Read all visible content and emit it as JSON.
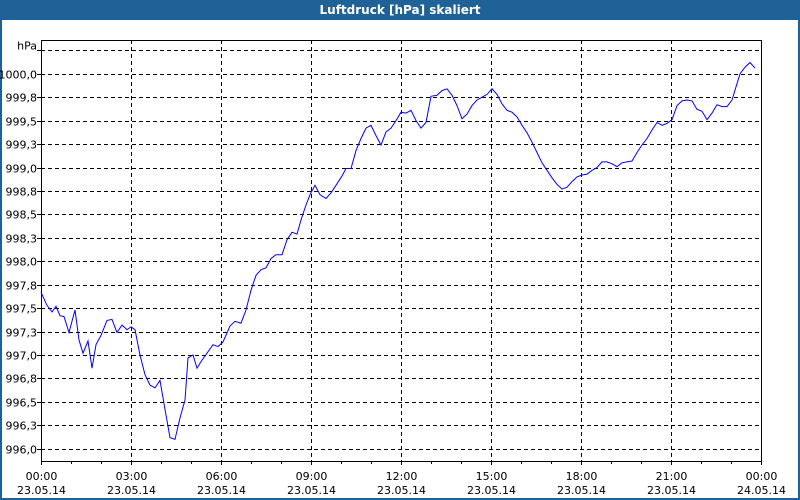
{
  "window": {
    "title": "Luftdruck [hPa] skaliert",
    "title_bar_color": "#1f6297"
  },
  "chart_data": {
    "type": "line",
    "title": "Luftdruck [hPa] skaliert",
    "ylabel": "hPa",
    "xlabel": "",
    "line_color": "#0000ff",
    "grid": true,
    "grid_style": "dashed",
    "ylim": [
      995.87,
      1000.36
    ],
    "xlim": [
      "23.05.14 00:00",
      "24.05.14 00:00"
    ],
    "y_ticks": [
      {
        "value": 996.0,
        "label": "996,0"
      },
      {
        "value": 996.25,
        "label": "996,3"
      },
      {
        "value": 996.5,
        "label": "996,5"
      },
      {
        "value": 996.75,
        "label": "996,8"
      },
      {
        "value": 997.0,
        "label": "997,0"
      },
      {
        "value": 997.25,
        "label": "997,3"
      },
      {
        "value": 997.5,
        "label": "997,5"
      },
      {
        "value": 997.75,
        "label": "997,8"
      },
      {
        "value": 998.0,
        "label": "998,0"
      },
      {
        "value": 998.25,
        "label": "998,3"
      },
      {
        "value": 998.5,
        "label": "998,5"
      },
      {
        "value": 998.75,
        "label": "998,8"
      },
      {
        "value": 999.0,
        "label": "999,0"
      },
      {
        "value": 999.25,
        "label": "999,3"
      },
      {
        "value": 999.5,
        "label": "999,5"
      },
      {
        "value": 999.75,
        "label": "999,8"
      },
      {
        "value": 1000.0,
        "label": "1000,0"
      },
      {
        "value": 1000.25,
        "label": ""
      }
    ],
    "x_ticks": [
      {
        "time": "00:00",
        "date": "23.05.14"
      },
      {
        "time": "03:00",
        "date": "23.05.14"
      },
      {
        "time": "06:00",
        "date": "23.05.14"
      },
      {
        "time": "09:00",
        "date": "23.05.14"
      },
      {
        "time": "12:00",
        "date": "23.05.14"
      },
      {
        "time": "15:00",
        "date": "23.05.14"
      },
      {
        "time": "18:00",
        "date": "23.05.14"
      },
      {
        "time": "21:00",
        "date": "23.05.14"
      },
      {
        "time": "00:00",
        "date": "24.05.14"
      }
    ],
    "series": [
      {
        "x": [
          "00:00",
          "00:12",
          "00:22",
          "00:30",
          "00:38",
          "00:46",
          "00:56",
          "01:08",
          "01:16",
          "01:24",
          "01:34",
          "01:42",
          "01:50",
          "02:00",
          "02:12",
          "02:22",
          "02:32",
          "02:42",
          "02:52",
          "03:00",
          "03:08",
          "03:18",
          "03:28",
          "03:38",
          "03:48",
          "03:58",
          "04:08",
          "04:18",
          "04:28",
          "04:38",
          "04:48",
          "04:54",
          "05:04",
          "05:12",
          "05:20",
          "05:32",
          "05:44",
          "05:54",
          "06:04",
          "06:18",
          "06:28",
          "06:40",
          "06:50",
          "07:00",
          "07:10",
          "07:20",
          "07:30",
          "07:40",
          "07:50",
          "08:02",
          "08:12",
          "08:22",
          "08:32",
          "08:40",
          "08:50",
          "08:58",
          "09:08",
          "09:18",
          "09:30",
          "09:40",
          "09:50",
          "10:02",
          "10:10",
          "10:20",
          "10:30",
          "10:40",
          "10:50",
          "11:00",
          "11:10",
          "11:20",
          "11:30",
          "11:40",
          "11:50",
          "12:00",
          "12:10",
          "12:20",
          "12:30",
          "12:40",
          "12:50",
          "13:00",
          "13:12",
          "13:22",
          "13:32",
          "13:42",
          "13:52",
          "14:02",
          "14:12",
          "14:22",
          "14:32",
          "14:42",
          "14:52",
          "15:02",
          "15:12",
          "15:22",
          "15:32",
          "15:42",
          "15:52",
          "16:02",
          "16:12",
          "16:22",
          "16:32",
          "16:42",
          "16:52",
          "17:02",
          "17:12",
          "17:22",
          "17:32",
          "17:42",
          "17:52",
          "18:02",
          "18:12",
          "18:22",
          "18:32",
          "18:42",
          "18:52",
          "19:02",
          "19:12",
          "19:22",
          "19:32",
          "19:42",
          "19:52",
          "20:02",
          "20:12",
          "20:22",
          "20:32",
          "20:42",
          "20:52",
          "21:02",
          "21:12",
          "21:22",
          "21:32",
          "21:42",
          "21:52",
          "22:02",
          "22:12",
          "22:22",
          "22:32",
          "22:42",
          "22:52",
          "23:02",
          "23:10",
          "23:18",
          "23:28",
          "23:38",
          "23:48"
        ],
        "values": [
          997.67,
          997.53,
          997.46,
          997.52,
          997.42,
          997.41,
          997.24,
          997.48,
          997.16,
          997.02,
          997.15,
          996.86,
          997.11,
          997.21,
          997.37,
          997.38,
          997.24,
          997.32,
          997.27,
          997.3,
          997.27,
          997.0,
          996.79,
          996.68,
          996.65,
          996.73,
          996.42,
          996.12,
          996.1,
          996.33,
          996.52,
          996.97,
          997.0,
          996.86,
          996.93,
          997.02,
          997.11,
          997.09,
          997.14,
          997.31,
          997.36,
          997.34,
          997.48,
          997.69,
          997.85,
          997.91,
          997.93,
          998.03,
          998.07,
          998.07,
          998.23,
          998.31,
          998.29,
          998.44,
          998.6,
          998.71,
          998.81,
          998.71,
          998.67,
          998.73,
          998.81,
          998.91,
          998.99,
          998.99,
          999.18,
          999.31,
          999.42,
          999.45,
          999.34,
          999.24,
          999.38,
          999.42,
          999.5,
          999.59,
          999.58,
          999.61,
          999.5,
          999.42,
          999.48,
          999.76,
          999.77,
          999.82,
          999.84,
          999.77,
          999.66,
          999.52,
          999.57,
          999.66,
          999.72,
          999.75,
          999.78,
          999.84,
          999.78,
          999.68,
          999.61,
          999.59,
          999.54,
          999.45,
          999.37,
          999.27,
          999.16,
          999.05,
          998.97,
          998.89,
          998.82,
          998.77,
          998.79,
          998.85,
          998.9,
          998.92,
          998.93,
          998.97,
          999.0,
          999.06,
          999.06,
          999.04,
          999.01,
          999.05,
          999.06,
          999.07,
          999.16,
          999.24,
          999.31,
          999.4,
          999.48,
          999.45,
          999.47,
          999.51,
          999.66,
          999.71,
          999.72,
          999.71,
          999.62,
          999.6,
          999.51,
          999.58,
          999.67,
          999.65,
          999.65,
          999.72,
          999.86,
          1000.0,
          1000.07,
          1000.12,
          1000.06
        ]
      }
    ]
  }
}
